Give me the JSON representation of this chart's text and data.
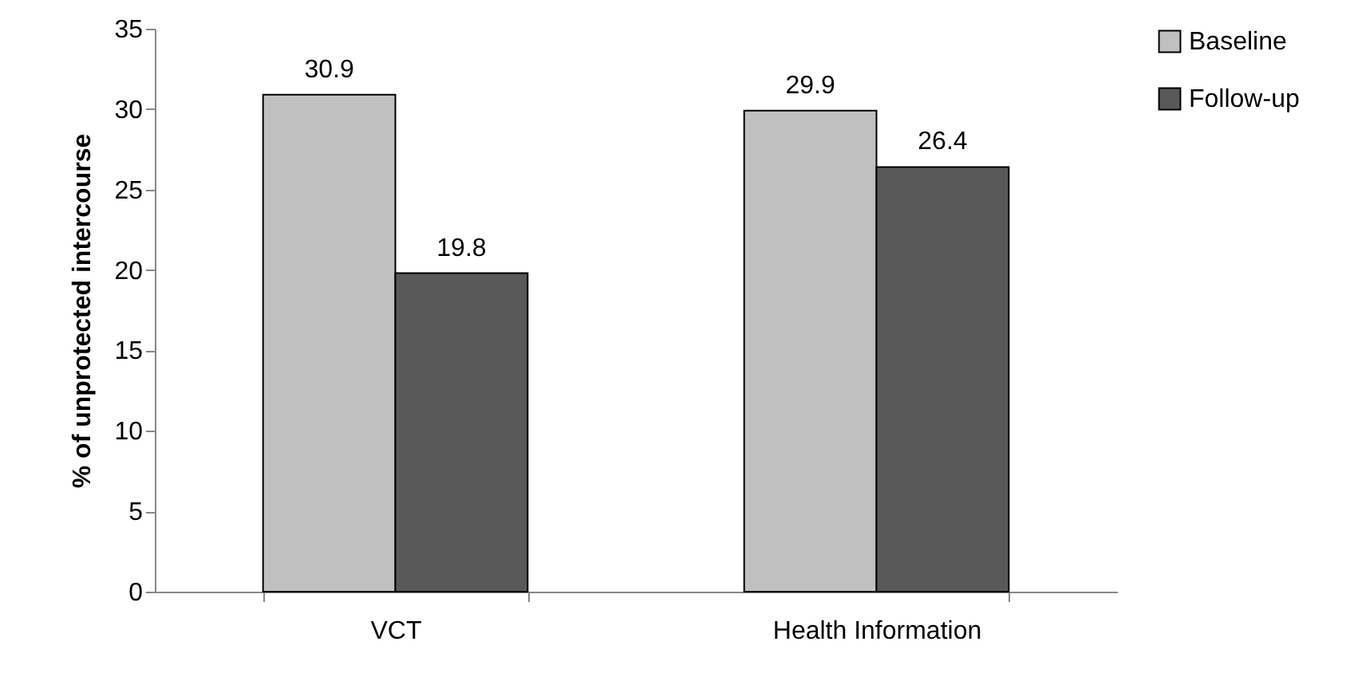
{
  "chart_data": {
    "type": "bar",
    "ylabel": "% of unprotected intercourse",
    "categories": [
      "VCT",
      "Health Information"
    ],
    "series": [
      {
        "name": "Baseline",
        "color": "#c0c0c0",
        "values": [
          30.9,
          29.9
        ]
      },
      {
        "name": "Follow-up",
        "color": "#595959",
        "values": [
          19.8,
          26.4
        ]
      }
    ],
    "ylim": [
      0,
      35
    ],
    "yticks": [
      0,
      5,
      10,
      15,
      20,
      25,
      30,
      35
    ],
    "grid": false,
    "legend": "right",
    "data_labels": true
  }
}
